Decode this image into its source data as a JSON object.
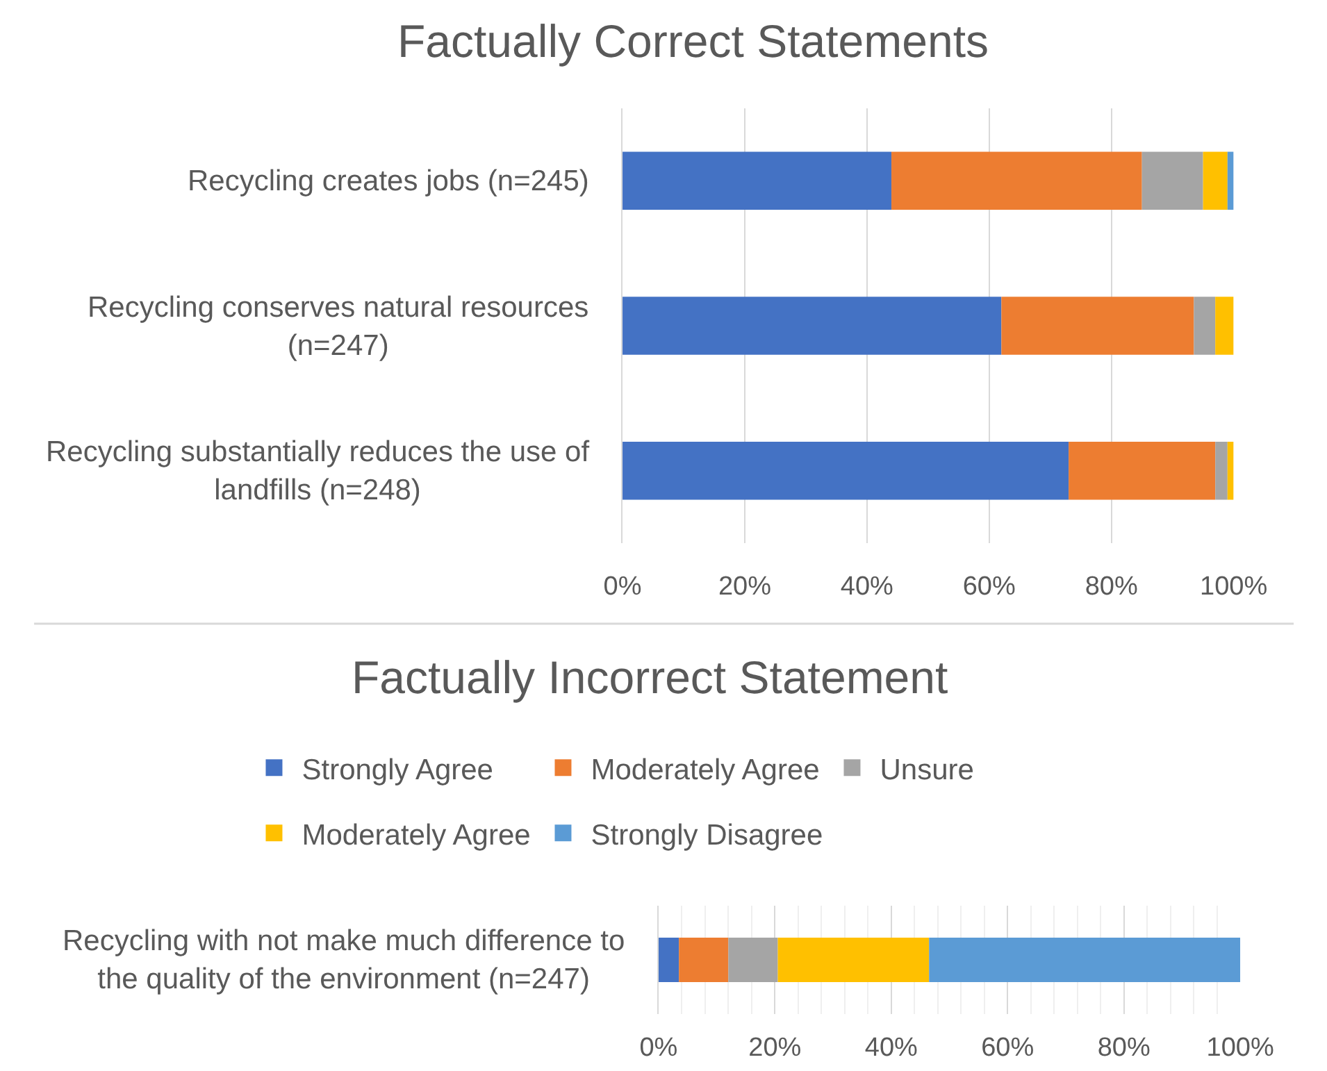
{
  "chart_data": [
    {
      "type": "bar",
      "title": "Factually Correct Statements",
      "orientation": "horizontal",
      "stacked": true,
      "categories": [
        "Recycling creates jobs (n=245)",
        "Recycling conserves natural resources (n=247)",
        "Recycling substantially reduces the use of landfills (n=248)"
      ],
      "series": [
        {
          "color": "#4472c4",
          "values": [
            44,
            62,
            73
          ]
        },
        {
          "color": "#ed7d31",
          "values": [
            41,
            31.5,
            24
          ]
        },
        {
          "color": "#a5a5a5",
          "values": [
            10,
            3.5,
            2
          ]
        },
        {
          "color": "#ffc000",
          "values": [
            4,
            3,
            1
          ]
        },
        {
          "color": "#5b9bd5",
          "values": [
            1,
            0,
            0
          ]
        }
      ],
      "xlim": [
        0,
        100
      ],
      "xticks": [
        {
          "value": 0,
          "label": "0%"
        },
        {
          "value": 20,
          "label": "20%"
        },
        {
          "value": 40,
          "label": "40%"
        },
        {
          "value": 60,
          "label": "60%"
        },
        {
          "value": 80,
          "label": "80%"
        },
        {
          "value": 100,
          "label": "100%"
        }
      ],
      "grid": "x"
    },
    {
      "type": "bar",
      "title": "Factually Incorrect Statement",
      "orientation": "horizontal",
      "stacked": true,
      "categories": [
        "Recycling with not make much difference to the quality of the environment (n=247)"
      ],
      "series": [
        {
          "name": "Strongly Agree",
          "color": "#4472c4",
          "values": [
            3.5
          ]
        },
        {
          "name": "Moderately Agree",
          "color": "#ed7d31",
          "values": [
            8.5
          ]
        },
        {
          "name": "Unsure",
          "color": "#a5a5a5",
          "values": [
            8.5
          ]
        },
        {
          "name": "Moderately Agree",
          "color": "#ffc000",
          "values": [
            26
          ]
        },
        {
          "name": "Strongly Disagree",
          "color": "#5b9bd5",
          "values": [
            53.5
          ]
        }
      ],
      "xlim": [
        0,
        100
      ],
      "xticks": [
        {
          "value": 0,
          "label": "0%"
        },
        {
          "value": 4,
          "label": null
        },
        {
          "value": 8,
          "label": null
        },
        {
          "value": 12,
          "label": null
        },
        {
          "value": 16,
          "label": null
        },
        {
          "value": 20,
          "label": "20%"
        },
        {
          "value": 24,
          "label": null
        },
        {
          "value": 28,
          "label": null
        },
        {
          "value": 32,
          "label": null
        },
        {
          "value": 36,
          "label": null
        },
        {
          "value": 40,
          "label": "40%"
        },
        {
          "value": 44,
          "label": null
        },
        {
          "value": 48,
          "label": null
        },
        {
          "value": 52,
          "label": null
        },
        {
          "value": 56,
          "label": null
        },
        {
          "value": 60,
          "label": "60%"
        },
        {
          "value": 64,
          "label": null
        },
        {
          "value": 68,
          "label": null
        },
        {
          "value": 72,
          "label": null
        },
        {
          "value": 76,
          "label": null
        },
        {
          "value": 80,
          "label": "80%"
        },
        {
          "value": 84,
          "label": null
        },
        {
          "value": 88,
          "label": null
        },
        {
          "value": 92,
          "label": null
        },
        {
          "value": 96,
          "label": null
        },
        {
          "value": 100,
          "label": "100%"
        }
      ],
      "grid": "x",
      "legend": "top"
    }
  ]
}
